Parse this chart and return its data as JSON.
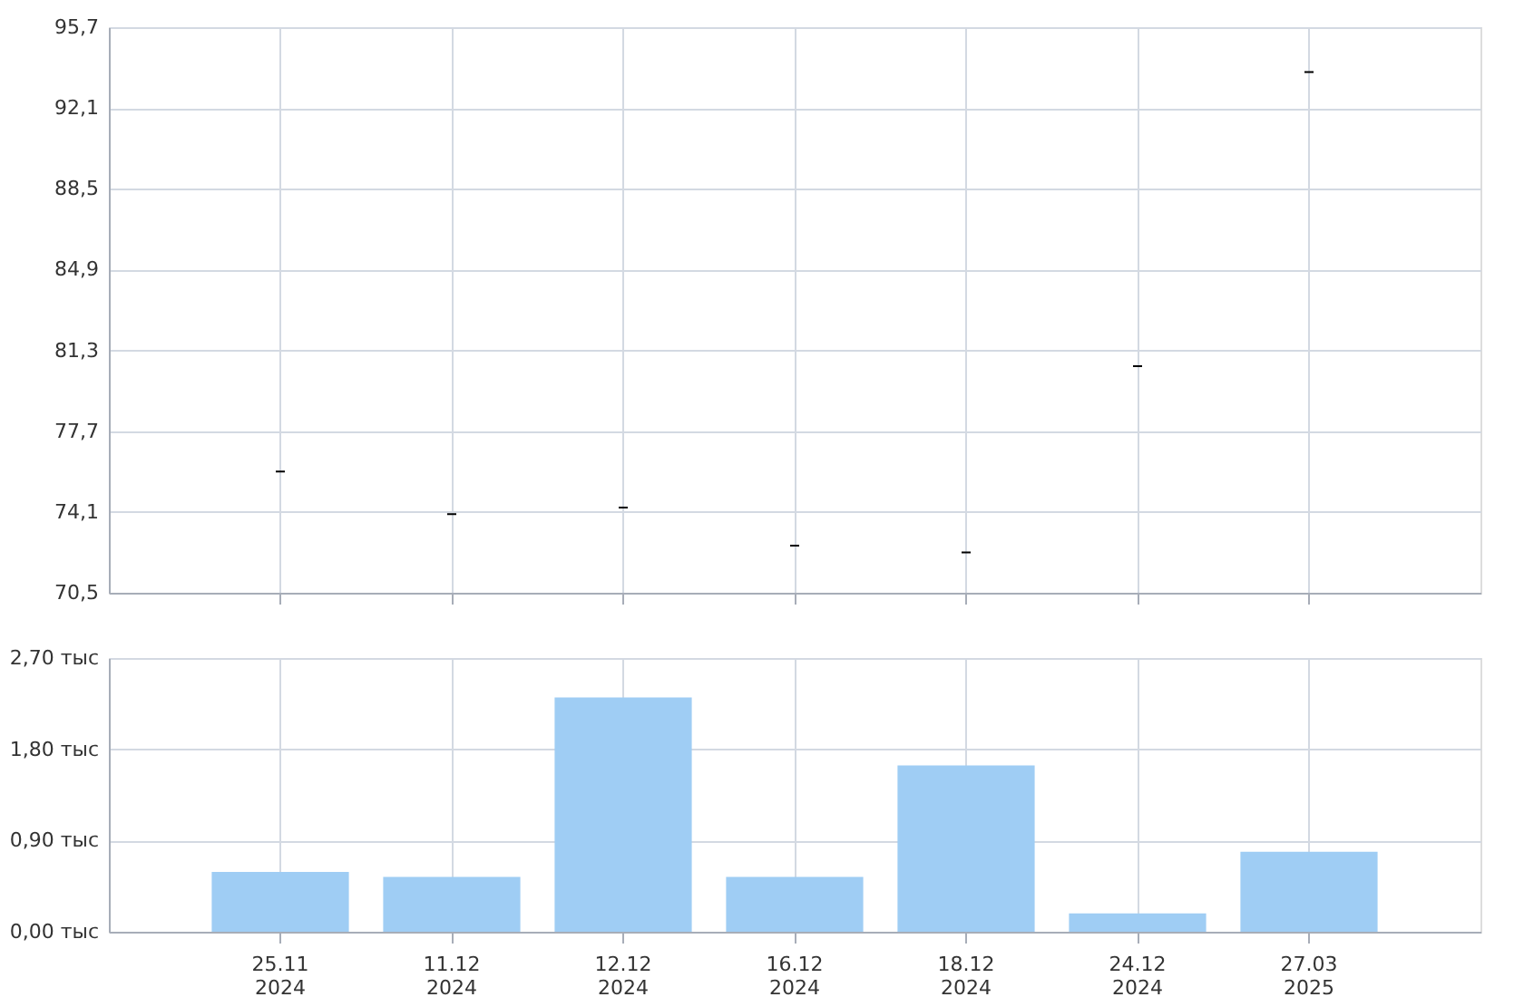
{
  "chart_data": [
    {
      "type": "candlestick",
      "categories": [
        null,
        null,
        null,
        null,
        null,
        null,
        null
      ],
      "ohlc": [
        [
          75.9,
          75.9,
          75.9,
          75.9
        ],
        [
          74.0,
          74.0,
          74.0,
          74.0
        ],
        [
          74.3,
          74.3,
          74.3,
          74.3
        ],
        [
          72.6,
          72.6,
          72.6,
          72.6
        ],
        [
          72.3,
          72.3,
          72.3,
          72.3
        ],
        [
          80.6,
          80.6,
          80.6,
          80.6
        ],
        [
          93.7,
          93.7,
          93.7,
          93.7
        ]
      ],
      "color": "#000000",
      "ylim": [
        70.5,
        95.7
      ],
      "yticks": [
        {
          "value": 70.5,
          "label": "70,5"
        },
        {
          "value": 74.1,
          "label": "74,1"
        },
        {
          "value": 77.7,
          "label": "77,7"
        },
        {
          "value": 81.3,
          "label": "81,3"
        },
        {
          "value": 84.9,
          "label": "84,9"
        },
        {
          "value": 88.5,
          "label": "88,5"
        },
        {
          "value": 92.1,
          "label": "92,1"
        },
        {
          "value": 95.7,
          "label": "95,7"
        }
      ],
      "grid": true,
      "tick_labels": "y"
    },
    {
      "type": "bar",
      "categories": [
        "25.11\n2024",
        "11.12\n2024",
        "12.12\n2024",
        "16.12\n2024",
        "18.12\n2024",
        "24.12\n2024",
        "27.03\n2025"
      ],
      "values": [
        0.59,
        0.54,
        2.31,
        0.54,
        1.64,
        0.18,
        0.79
      ],
      "color": "#9fcdf4",
      "ylim": [
        0,
        2.7
      ],
      "yticks": [
        {
          "value": 0,
          "label": "0,00 тыс"
        },
        {
          "value": 0.9,
          "label": "0,90 тыс"
        },
        {
          "value": 1.8,
          "label": "1,80 тыс"
        },
        {
          "value": 2.7,
          "label": "2,70 тыс"
        }
      ],
      "grid": true
    }
  ]
}
